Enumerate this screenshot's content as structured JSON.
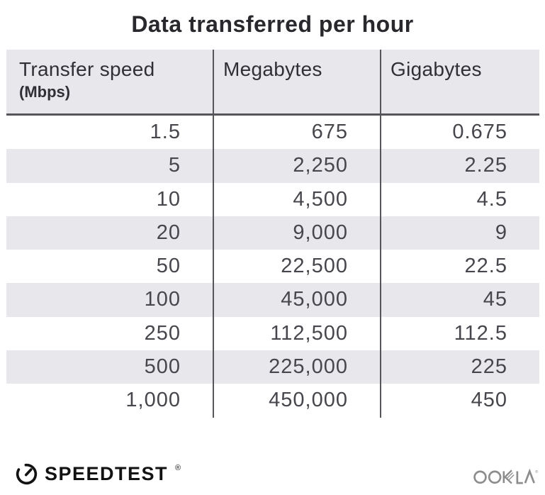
{
  "title": "Data transferred per hour",
  "table": {
    "columns": [
      {
        "label": "Transfer speed",
        "sublabel": "(Mbps)"
      },
      {
        "label": "Megabytes"
      },
      {
        "label": "Gigabytes"
      }
    ],
    "rows": [
      [
        "1.5",
        "675",
        "0.675"
      ],
      [
        "5",
        "2,250",
        "2.25"
      ],
      [
        "10",
        "4,500",
        "4.5"
      ],
      [
        "20",
        "9,000",
        "9"
      ],
      [
        "50",
        "22,500",
        "22.5"
      ],
      [
        "100",
        "45,000",
        "45"
      ],
      [
        "250",
        "112,500",
        "112.5"
      ],
      [
        "500",
        "225,000",
        "225"
      ],
      [
        "1,000",
        "450,000",
        "450"
      ]
    ]
  },
  "footer": {
    "speedtest_label": "SPEEDTEST",
    "speedtest_trademark": "®",
    "ookla_label": "OOKLA",
    "ookla_trademark": "®"
  },
  "colors": {
    "stripe_and_header_bg": "#e8e8ec",
    "divider": "#55555a",
    "title_text": "#28282d",
    "cell_text": "#46464c",
    "logo_black": "#121212",
    "ookla_gray": "#8d8d8d"
  },
  "chart_data": {
    "type": "table",
    "title": "Data transferred per hour",
    "columns": [
      "Transfer speed (Mbps)",
      "Megabytes",
      "Gigabytes"
    ],
    "rows": [
      [
        1.5,
        675,
        0.675
      ],
      [
        5,
        2250,
        2.25
      ],
      [
        10,
        4500,
        4.5
      ],
      [
        20,
        9000,
        9
      ],
      [
        50,
        22500,
        22.5
      ],
      [
        100,
        45000,
        45
      ],
      [
        250,
        112500,
        112.5
      ],
      [
        500,
        225000,
        225
      ],
      [
        1000,
        450000,
        450
      ]
    ]
  }
}
